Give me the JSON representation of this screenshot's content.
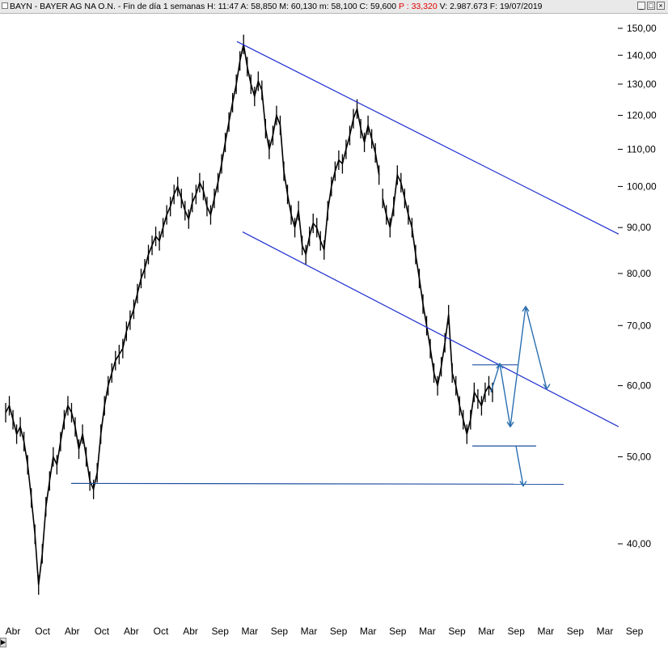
{
  "window": {
    "ticker": "BAYN - BAYER AG NA O.N.",
    "timeframe": "Fin de día 1 semanas",
    "hour": "H: 11:47",
    "open": "A: 58,850",
    "high": "M: 60,130",
    "low": "m: 58,100",
    "close": "C: 59,600",
    "change": "P : 33,320",
    "volume": "V: 2.987.673",
    "date": "F: 19/07/2019",
    "buttons": {
      "minimize": "_",
      "maximize": "□",
      "close": "×"
    },
    "colors": {
      "change_negative": "#e00000"
    }
  },
  "chart_data": {
    "type": "line",
    "title": "BAYN - BAYER AG NA O.N.",
    "y_scale": "log",
    "ylim": [
      34,
      157
    ],
    "y_ticks": [
      "150,00",
      "140,00",
      "130,00",
      "120,00",
      "110,00",
      "100,00",
      "90,00",
      "80,00",
      "70,00",
      "60,00",
      "50,00",
      "40,00"
    ],
    "x_ticks": [
      "Abr",
      "Oct",
      "Abr",
      "Oct",
      "Abr",
      "Oct",
      "Abr",
      "Sep",
      "Mar",
      "Sep",
      "Mar",
      "Sep",
      "Mar",
      "Sep",
      "Mar",
      "Sep",
      "Mar",
      "Sep",
      "Mar",
      "Sep",
      "Mar",
      "Sep"
    ],
    "grid": false,
    "series": [
      {
        "values": [
          56,
          57,
          55,
          53,
          54,
          52,
          49,
          45,
          41,
          36,
          39,
          44,
          47,
          50,
          49,
          52,
          55,
          57,
          56,
          54,
          51,
          53,
          50,
          47,
          46,
          48,
          53,
          57,
          60,
          62,
          64,
          65,
          66,
          69,
          71,
          73,
          76,
          79,
          81,
          84,
          86,
          88,
          87,
          90,
          93,
          95,
          98,
          100,
          97,
          94,
          92,
          96,
          98,
          101,
          99,
          95,
          93,
          97,
          101,
          106,
          112,
          118,
          124,
          130,
          138,
          144,
          136,
          130,
          126,
          131,
          128,
          116,
          110,
          114,
          120,
          117,
          104,
          98,
          93,
          90,
          94,
          86,
          84,
          88,
          91,
          90,
          87,
          85,
          94,
          100,
          104,
          107,
          106,
          110,
          114,
          119,
          122,
          116,
          112,
          117,
          113,
          109,
          103,
          97,
          93,
          90,
          95,
          103,
          101,
          97,
          93,
          90,
          84,
          79,
          74,
          70,
          66,
          62,
          60,
          63,
          67,
          72,
          62,
          60,
          57,
          55,
          53,
          55,
          59,
          58,
          57,
          59,
          60,
          59
        ],
        "color": "#000000"
      }
    ],
    "trend_lines": [
      {
        "from": [
          "Mar",
          145
        ],
        "to": [
          "Sep",
          88.5
        ],
        "color": "#1f2fd1"
      },
      {
        "from": [
          "Mar",
          89
        ],
        "to": [
          "Sep",
          54
        ],
        "color": "#1f2fd1"
      }
    ],
    "support_lines": [
      {
        "from": [
          "Abr",
          46.7
        ],
        "to": [
          "Sep",
          46.6
        ],
        "color": "#1f4fa0"
      },
      {
        "from": [
          "Mar",
          51.4
        ],
        "to": [
          "Sep",
          51.4
        ],
        "color": "#1f4fa0"
      },
      {
        "from": [
          "Mar",
          63.3
        ],
        "to": [
          "Mar",
          63.3
        ],
        "color": "#1f4fa0"
      }
    ],
    "projection_paths": [
      {
        "points": [
          59,
          63.5,
          54,
          73.5,
          59.5
        ],
        "color": "#2a6fb0"
      },
      {
        "points": [
          51.4,
          46.4
        ],
        "color": "#2a6fb0"
      }
    ]
  }
}
